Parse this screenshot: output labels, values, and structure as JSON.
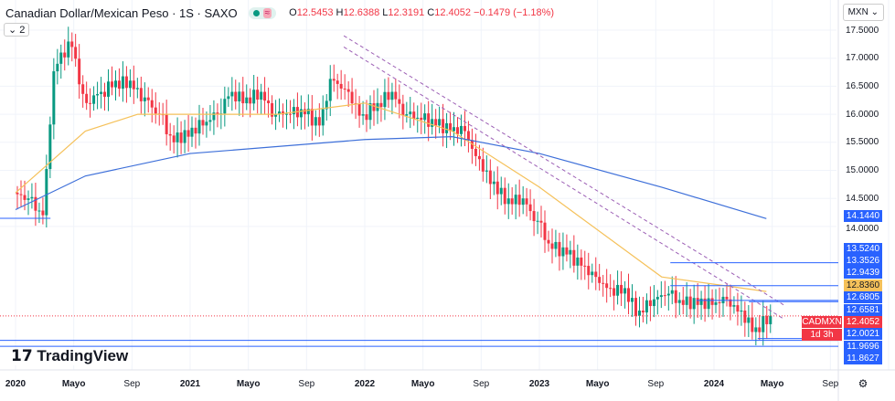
{
  "header": {
    "title": "Canadian Dollar/Mexican Peso · 1S · SAXO",
    "open_label": "O",
    "open": "12.5453",
    "high_label": "H",
    "high": "12.6388",
    "low_label": "L",
    "low": "12.3191",
    "close_label": "C",
    "close": "12.4052",
    "change": "−0.1479 (−1.18%)",
    "indicator_count": "2",
    "currency": "MXN"
  },
  "logo": "TradingView",
  "colors": {
    "up": "#089981",
    "down": "#f23645",
    "ma_fast": "#f5c15a",
    "ma_slow": "#3d6fd9",
    "trend": "#9c5fb5",
    "level": "#2962ff"
  },
  "chart_data": {
    "type": "candlestick",
    "ylim": [
      11.8,
      17.8
    ],
    "y_ticks": [
      "17.5000",
      "17.0000",
      "16.5000",
      "16.0000",
      "15.5000",
      "15.0000",
      "14.5000",
      "14.0000"
    ],
    "x_ticks": [
      "2020",
      "Mayo",
      "Sep",
      "2021",
      "Mayo",
      "Sep",
      "2022",
      "Mayo",
      "Sep",
      "2023",
      "Mayo",
      "Sep",
      "2024",
      "Mayo",
      "Sep"
    ],
    "monthly_close_start": "2020-01",
    "closes": [
      14.5,
      14.2,
      16.9,
      17.2,
      16.2,
      16.4,
      16.6,
      16.6,
      16.3,
      16.0,
      15.5,
      15.6,
      15.8,
      16.0,
      16.4,
      16.3,
      16.4,
      16.0,
      16.0,
      16.0,
      15.8,
      16.6,
      16.4,
      16.0,
      16.2,
      16.4,
      16.0,
      15.9,
      15.8,
      15.7,
      15.7,
      15.2,
      14.8,
      14.5,
      14.5,
      14.1,
      13.6,
      13.5,
      13.3,
      13.1,
      12.9,
      12.9,
      12.5,
      12.7,
      12.8,
      12.6,
      12.6,
      12.6,
      12.7,
      12.5,
      12.2,
      12.4052
    ],
    "ma_fast": [
      [
        2020.0,
        14.6
      ],
      [
        2020.4,
        15.7
      ],
      [
        2020.7,
        16.0
      ],
      [
        2021.5,
        16.0
      ],
      [
        2022.0,
        16.2
      ],
      [
        2022.5,
        15.7
      ],
      [
        2023.0,
        14.7
      ],
      [
        2023.7,
        13.1
      ],
      [
        2024.3,
        12.84
      ]
    ],
    "ma_slow": [
      [
        2020.0,
        14.3
      ],
      [
        2020.4,
        14.9
      ],
      [
        2021.0,
        15.3
      ],
      [
        2022.0,
        15.55
      ],
      [
        2022.5,
        15.6
      ],
      [
        2023.0,
        15.3
      ],
      [
        2023.7,
        14.7
      ],
      [
        2024.3,
        14.14
      ]
    ],
    "price_labels": [
      {
        "text": "14.1440",
        "color": "#2962ff"
      },
      {
        "text": "13.5240",
        "color": "#2962ff"
      },
      {
        "text": "13.3526",
        "color": "#2962ff"
      },
      {
        "text": "12.9439",
        "color": "#2962ff"
      },
      {
        "text": "12.8360",
        "color": "#f5c15a"
      },
      {
        "text": "12.6805",
        "color": "#2962ff"
      },
      {
        "text": "12.6581",
        "color": "#2962ff"
      },
      {
        "text": "12.4052",
        "color": "#f23645"
      },
      {
        "text": "12.0021",
        "color": "#2962ff"
      },
      {
        "text": "11.9696",
        "color": "#2962ff"
      },
      {
        "text": "11.8627",
        "color": "#2962ff"
      }
    ],
    "symbol_tag": "CADMXN",
    "countdown": "1d 3h"
  }
}
